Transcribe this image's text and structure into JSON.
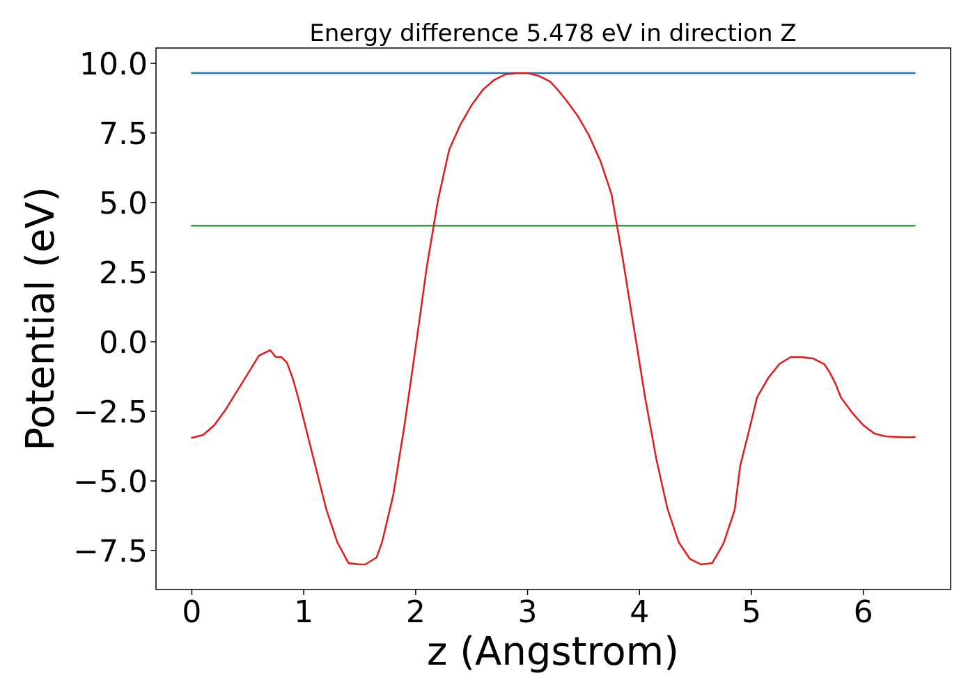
{
  "chart_data": {
    "type": "line",
    "title": "Energy difference 5.478 eV in direction Z",
    "xlabel": "z (Angstrom)",
    "ylabel": "Potential (eV)",
    "xlim": [
      -0.32,
      6.78
    ],
    "ylim": [
      -8.9,
      10.55
    ],
    "grid": false,
    "xticks": [
      0,
      1,
      2,
      3,
      4,
      5,
      6
    ],
    "xtick_labels": [
      "0",
      "1",
      "2",
      "3",
      "4",
      "5",
      "6"
    ],
    "yticks": [
      -7.5,
      -5.0,
      -2.5,
      0.0,
      2.5,
      5.0,
      7.5,
      10.0
    ],
    "ytick_labels": [
      "−7.5",
      "−5.0",
      "−2.5",
      "0.0",
      "2.5",
      "5.0",
      "7.5",
      "10.0"
    ],
    "series": [
      {
        "color": "#1f77b4",
        "x": [
          0,
          6.46
        ],
        "y": [
          9.65,
          9.65
        ]
      },
      {
        "color": "#2ca02c",
        "x": [
          0,
          6.46
        ],
        "y": [
          4.17,
          4.17
        ]
      },
      {
        "color": "#e31a1c",
        "x": [
          0,
          0.1,
          0.2,
          0.3,
          0.4,
          0.5,
          0.6,
          0.7,
          0.75,
          0.8,
          0.85,
          0.9,
          0.95,
          1.0,
          1.1,
          1.2,
          1.3,
          1.4,
          1.5,
          1.55,
          1.65,
          1.7,
          1.8,
          1.9,
          2.0,
          2.1,
          2.2,
          2.3,
          2.4,
          2.5,
          2.6,
          2.7,
          2.8,
          2.9,
          3.0,
          3.1,
          3.2,
          3.27,
          3.35,
          3.45,
          3.55,
          3.65,
          3.75,
          3.85,
          3.95,
          4.05,
          4.15,
          4.25,
          4.35,
          4.45,
          4.55,
          4.65,
          4.75,
          4.85,
          4.9,
          5.0,
          5.05,
          5.15,
          5.25,
          5.35,
          5.45,
          5.55,
          5.65,
          5.7,
          5.75,
          5.8,
          5.9,
          6.0,
          6.1,
          6.2,
          6.3,
          6.4,
          6.46
        ],
        "y": [
          -3.45,
          -3.35,
          -3.0,
          -2.45,
          -1.8,
          -1.15,
          -0.5,
          -0.3,
          -0.55,
          -0.55,
          -0.75,
          -1.3,
          -2.0,
          -2.8,
          -4.4,
          -6.0,
          -7.2,
          -7.95,
          -8.0,
          -8.0,
          -7.75,
          -7.2,
          -5.5,
          -3.0,
          -0.2,
          2.7,
          5.1,
          6.9,
          7.8,
          8.5,
          9.05,
          9.4,
          9.6,
          9.65,
          9.65,
          9.55,
          9.35,
          9.05,
          8.65,
          8.1,
          7.4,
          6.5,
          5.3,
          3.0,
          0.5,
          -2.0,
          -4.2,
          -6.0,
          -7.2,
          -7.8,
          -8.0,
          -7.95,
          -7.25,
          -6.05,
          -4.45,
          -2.85,
          -2.0,
          -1.3,
          -0.8,
          -0.55,
          -0.55,
          -0.6,
          -0.8,
          -1.1,
          -1.5,
          -2.0,
          -2.55,
          -3.0,
          -3.3,
          -3.4,
          -3.42,
          -3.43,
          -3.42
        ]
      }
    ]
  }
}
